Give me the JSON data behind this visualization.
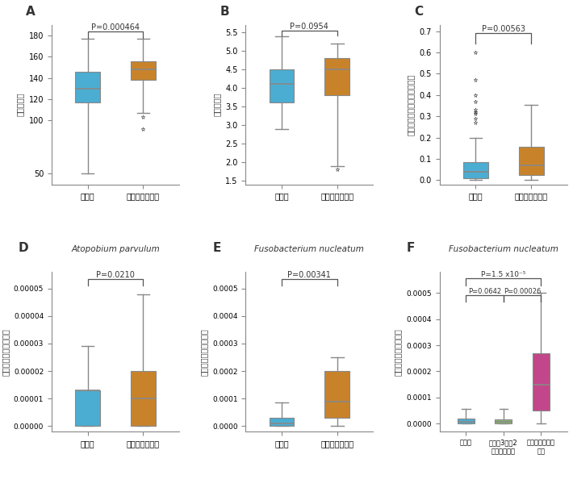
{
  "panel_A": {
    "label": "A",
    "ylabel": "種の豊富さ",
    "xlabel_groups": [
      "健常者",
      "胃切除後の患者"
    ],
    "pvalue": "P=0.000464",
    "colors": [
      "#4BADD2",
      "#C8832A"
    ],
    "boxes": [
      {
        "whislo": 50,
        "q1": 117,
        "med": 130,
        "q3": 146,
        "whishi": 177,
        "fliers": []
      },
      {
        "whislo": 107,
        "q1": 138,
        "med": 148,
        "q3": 156,
        "whishi": 177,
        "fliers": [
          103,
          92
        ]
      }
    ],
    "ylim": [
      40,
      190
    ],
    "yticks": [
      50,
      100,
      120,
      140,
      160,
      180
    ]
  },
  "panel_B": {
    "label": "B",
    "ylabel": "種の多様性",
    "xlabel_groups": [
      "健常者",
      "胃切除後の患者"
    ],
    "pvalue": "P=0.0954",
    "colors": [
      "#4BADD2",
      "#C8832A"
    ],
    "boxes": [
      {
        "whislo": 2.9,
        "q1": 3.6,
        "med": 4.1,
        "q3": 4.5,
        "whishi": 5.4,
        "fliers": []
      },
      {
        "whislo": 1.9,
        "q1": 3.8,
        "med": 4.5,
        "q3": 4.8,
        "whishi": 5.2,
        "fliers": [
          1.8
        ]
      }
    ],
    "ylim": [
      1.4,
      5.7
    ],
    "yticks": [
      1.5,
      2.0,
      2.5,
      3.0,
      3.5,
      4.0,
      4.5,
      5.0,
      5.5
    ]
  },
  "panel_C": {
    "label": "C",
    "ylabel": "口腔内細菌の相対的な存在量",
    "xlabel_groups": [
      "健常者",
      "胃切除後の患者"
    ],
    "pvalue": "P=0.00563",
    "colors": [
      "#4BADD2",
      "#C8832A"
    ],
    "boxes": [
      {
        "whislo": 0.0,
        "q1": 0.01,
        "med": 0.04,
        "q3": 0.085,
        "whishi": 0.2,
        "fliers": [
          0.27,
          0.29,
          0.31,
          0.32,
          0.33,
          0.37,
          0.4,
          0.47,
          0.6
        ]
      },
      {
        "whislo": 0.0,
        "q1": 0.025,
        "med": 0.07,
        "q3": 0.155,
        "whishi": 0.355,
        "fliers": []
      }
    ],
    "ylim": [
      -0.02,
      0.73
    ],
    "yticks": [
      0.0,
      0.1,
      0.2,
      0.3,
      0.4,
      0.5,
      0.6,
      0.7
    ]
  },
  "panel_D": {
    "label": "D",
    "title": "Atopobium parvulum",
    "ylabel": "便中の相対的な存在量",
    "xlabel_groups": [
      "健常者",
      "胃切除後の患者"
    ],
    "pvalue": "P=0.0210",
    "colors": [
      "#4BADD2",
      "#C8832A"
    ],
    "boxes": [
      {
        "whislo": 0.0,
        "q1": 0.0,
        "med": 1.3e-05,
        "q3": 1.3e-05,
        "whishi": 2.9e-05,
        "fliers": []
      },
      {
        "whislo": 0.0,
        "q1": 0.0,
        "med": 1e-05,
        "q3": 2e-05,
        "whishi": 4.8e-05,
        "fliers": []
      }
    ],
    "ylim": [
      -2e-06,
      5.6e-05
    ],
    "yticks": [
      0.0,
      1e-05,
      2e-05,
      3e-05,
      4e-05,
      5e-05
    ]
  },
  "panel_E": {
    "label": "E",
    "title": "Fusobacterium nucleatum",
    "ylabel": "便中の相対的な存在量",
    "xlabel_groups": [
      "健常者",
      "胃切除後の患者"
    ],
    "pvalue": "P=0.00341",
    "colors": [
      "#4BADD2",
      "#C8832A"
    ],
    "boxes": [
      {
        "whislo": 0.0,
        "q1": 0.0,
        "med": 1e-05,
        "q3": 3e-05,
        "whishi": 8.5e-05,
        "fliers": []
      },
      {
        "whislo": 0.0,
        "q1": 3e-05,
        "med": 9e-05,
        "q3": 0.0002,
        "whishi": 0.00025,
        "fliers": []
      }
    ],
    "ylim": [
      -2e-05,
      0.00056
    ],
    "yticks": [
      0.0,
      0.0001,
      0.0002,
      0.0003,
      0.0004,
      0.0005
    ]
  },
  "panel_F": {
    "label": "F",
    "title": "Fusobacterium nucleatum",
    "ylabel": "便中の相対的な存在量",
    "xlabel_groups": [
      "健常者",
      "胃を約3分の2\n摘出した患者",
      "胃を全摘出した\n患者"
    ],
    "pvalue_main": "P=1.5 x10⁻⁵",
    "pvalue_1": "P=0.0642",
    "pvalue_2": "P=0.00026",
    "colors": [
      "#4BADD2",
      "#8DB86E",
      "#C2478A"
    ],
    "boxes": [
      {
        "whislo": 0.0,
        "q1": 0.0,
        "med": 8e-06,
        "q3": 2e-05,
        "whishi": 5.5e-05,
        "fliers": []
      },
      {
        "whislo": 0.0,
        "q1": 0.0,
        "med": 8e-06,
        "q3": 1.5e-05,
        "whishi": 5.5e-05,
        "fliers": []
      },
      {
        "whislo": 0.0,
        "q1": 5e-05,
        "med": 0.00015,
        "q3": 0.00027,
        "whishi": 0.0005,
        "fliers": []
      }
    ],
    "ylim": [
      -3e-05,
      0.00058
    ],
    "yticks": [
      0.0,
      0.0001,
      0.0002,
      0.0003,
      0.0004,
      0.0005
    ]
  },
  "bg_color": "#ffffff",
  "whisker_color": "#888888",
  "median_color": "#888888",
  "box_edge_color": "#888888"
}
